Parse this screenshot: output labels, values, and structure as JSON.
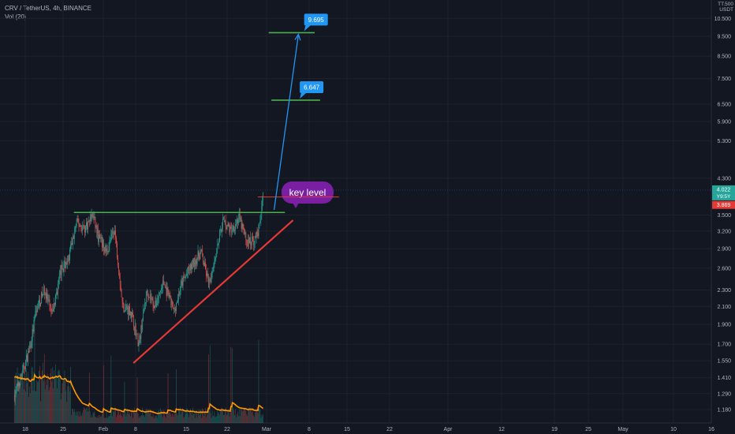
{
  "header": {
    "symbol_line": "CRV / TetherUS, 4h, BINANCE",
    "volume_line": "Vol (20)"
  },
  "axis": {
    "currency_top": "TT.500",
    "currency": "USDT"
  },
  "colors": {
    "background": "#131722",
    "grid": "#1e222d",
    "up": "#26a69a",
    "down": "#ef5350",
    "volume_ma": "#ff9800",
    "level_line": "#4caf50",
    "support": "#e53935",
    "arrow": "#2196f3",
    "key_level_bubble": "#7b1fa2",
    "target_label": "#2196f3"
  },
  "chart_data": {
    "type": "candlestick",
    "scale": "log",
    "x_tick_labels": [
      "18",
      "25",
      "Feb",
      "8",
      "15",
      "22",
      "Mar",
      "8",
      "15",
      "22",
      "Apr",
      "12",
      "19",
      "25",
      "May",
      "10",
      "16"
    ],
    "y_tick_labels": [
      "10.500",
      "9.500",
      "8.500",
      "7.500",
      "6.500",
      "5.900",
      "5.300",
      "4.300",
      "3.500",
      "3.200",
      "2.900",
      "2.600",
      "2.300",
      "2.100",
      "1.900",
      "1.700",
      "1.550",
      "1.410",
      "1.290",
      "1.180"
    ],
    "price_path": [
      {
        "date": "2021-01-14",
        "price": 1.28
      },
      {
        "date": "2021-01-17",
        "price": 1.45
      },
      {
        "date": "2021-01-20",
        "price": 1.7
      },
      {
        "date": "2021-01-22",
        "price": 2.05
      },
      {
        "date": "2021-01-25",
        "price": 2.3
      },
      {
        "date": "2021-01-28",
        "price": 2.0
      },
      {
        "date": "2021-01-31",
        "price": 2.55
      },
      {
        "date": "2021-02-03",
        "price": 2.75
      },
      {
        "date": "2021-02-06",
        "price": 3.35
      },
      {
        "date": "2021-02-09",
        "price": 3.25
      },
      {
        "date": "2021-02-12",
        "price": 3.5
      },
      {
        "date": "2021-02-14",
        "price": 3.1
      },
      {
        "date": "2021-02-17",
        "price": 2.85
      },
      {
        "date": "2021-02-20",
        "price": 3.25
      },
      {
        "date": "2021-02-23",
        "price": 2.1
      },
      {
        "date": "2021-02-26",
        "price": 2.05
      },
      {
        "date": "2021-03-01",
        "price": 1.7
      },
      {
        "date": "2021-03-04",
        "price": 2.3
      },
      {
        "date": "2021-03-07",
        "price": 2.1
      },
      {
        "date": "2021-03-10",
        "price": 2.4
      },
      {
        "date": "2021-03-14",
        "price": 2.05
      },
      {
        "date": "2021-03-17",
        "price": 2.4
      },
      {
        "date": "2021-03-20",
        "price": 2.6
      },
      {
        "date": "2021-03-24",
        "price": 2.85
      },
      {
        "date": "2021-03-27",
        "price": 2.35
      },
      {
        "date": "2021-03-29",
        "price": 2.75
      },
      {
        "date": "2021-04-01",
        "price": 3.4
      },
      {
        "date": "2021-04-04",
        "price": 3.2
      },
      {
        "date": "2021-04-07",
        "price": 3.45
      },
      {
        "date": "2021-04-10",
        "price": 3.0
      },
      {
        "date": "2021-04-13",
        "price": 3.05
      },
      {
        "date": "2021-04-15",
        "price": 3.35
      },
      {
        "date": "2021-04-16",
        "price": 4.02
      }
    ],
    "last_price": "4.022",
    "last_price_countdown": "Y9:5Y",
    "marked_price": "3.869",
    "key_level": {
      "label": "key level",
      "price": 3.55,
      "from": "2021-02-05",
      "to": "2021-04-24"
    },
    "support_trendline": {
      "from": {
        "date": "2021-02-27",
        "price": 1.53
      },
      "to": {
        "date": "2021-04-27",
        "price": 3.4
      }
    },
    "marked_level": {
      "price": 3.87,
      "from": "2021-04-14",
      "to": "2021-05-14"
    },
    "targets": [
      {
        "label": "6.647",
        "price": 6.647,
        "from": "2021-04-19",
        "to": "2021-05-07"
      },
      {
        "label": "9.695",
        "price": 9.695,
        "from": "2021-04-18",
        "to": "2021-05-05"
      }
    ],
    "projection_arrow": {
      "from": {
        "date": "2021-04-20",
        "price": 3.6
      },
      "to": {
        "date": "2021-04-29",
        "price": 9.6
      }
    }
  }
}
